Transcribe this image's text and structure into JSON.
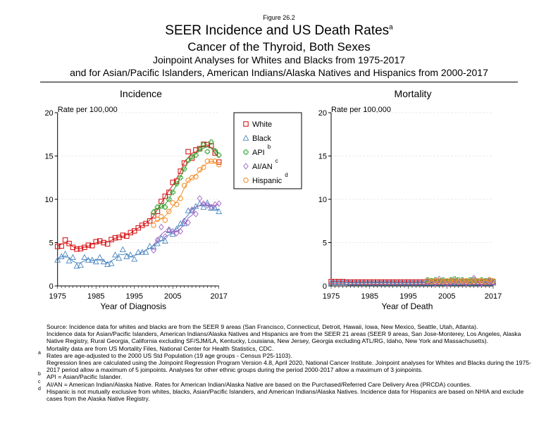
{
  "header": {
    "figure": "Figure 26.2",
    "title": "SEER Incidence and US Death Rates",
    "title_sup": "a",
    "subtitle": "Cancer of the Thyroid, Both Sexes",
    "line1": "Joinpoint Analyses for Whites and Blacks from 1975-2017",
    "line2": "and for Asian/Pacific Islanders, American Indians/Alaska Natives and Hispanics from 2000-2017"
  },
  "colors": {
    "White": "#d7191c",
    "Black": "#4a85c0",
    "API": "#33a02c",
    "AI/AN": "#9e64c4",
    "Hispanic": "#f5922f"
  },
  "legend": [
    {
      "label": "White",
      "sup": "",
      "marker": "square"
    },
    {
      "label": "Black",
      "sup": "",
      "marker": "triangle"
    },
    {
      "label": "API",
      "sup": "b",
      "marker": "plus"
    },
    {
      "label": "AI/AN",
      "sup": "c",
      "marker": "diamond"
    },
    {
      "label": "Hispanic",
      "sup": "d",
      "marker": "circle"
    }
  ],
  "chart_data": [
    {
      "type": "line",
      "title": "Incidence",
      "ylabel": "Rate per 100,000",
      "xlabel": "Year of Diagnosis",
      "xlim": [
        1975,
        2017
      ],
      "ylim": [
        0,
        20
      ],
      "xticks": [
        "1975",
        "1985",
        "1995",
        "2005",
        "2017"
      ],
      "yticks": [
        "0",
        "5",
        "10",
        "15",
        "20"
      ],
      "grid": "horizontal dotted",
      "legend": "top-right",
      "series": [
        {
          "name": "White",
          "x_start": 1975,
          "values": [
            4.55,
            4.6,
            5.3,
            4.9,
            4.45,
            4.25,
            4.3,
            4.45,
            4.7,
            4.65,
            5.1,
            5.2,
            5.0,
            4.85,
            5.35,
            5.55,
            5.6,
            5.85,
            5.75,
            6.15,
            6.35,
            6.7,
            7.0,
            7.2,
            7.5,
            8.1,
            8.6,
            9.75,
            10.35,
            10.8,
            11.95,
            12.1,
            13.25,
            14.2,
            15.5,
            14.75,
            15.7,
            15.85,
            16.35,
            16.3,
            16.2,
            15.35,
            14.3
          ]
        },
        {
          "name": "Black",
          "x_start": 1975,
          "values": [
            3.0,
            3.4,
            3.7,
            2.9,
            3.3,
            2.3,
            2.4,
            3.3,
            3.0,
            3.0,
            2.8,
            3.3,
            2.8,
            2.5,
            2.6,
            3.6,
            3.2,
            4.2,
            3.4,
            3.6,
            3.1,
            3.9,
            3.9,
            3.9,
            4.6,
            4.5,
            4.9,
            5.5,
            5.2,
            6.4,
            6.0,
            6.6,
            7.2,
            7.2,
            8.7,
            8.7,
            9.2,
            9.5,
            9.1,
            9.6,
            9.0,
            9.0,
            8.6
          ]
        },
        {
          "name": "API",
          "x_start": 2000,
          "values": [
            8.5,
            9.1,
            9.2,
            9.1,
            10.0,
            10.8,
            11.8,
            12.5,
            13.5,
            14.5,
            14.9,
            15.1,
            15.8,
            16.3,
            15.5,
            16.6,
            15.6,
            15.1
          ]
        },
        {
          "name": "AI/AN",
          "x_start": 2000,
          "values": [
            4.1,
            5.3,
            6.8,
            5.7,
            6.5,
            6.3,
            6.1,
            6.3,
            7.5,
            7.3,
            8.8,
            8.3,
            10.1,
            9.5,
            9.3,
            9.1,
            9.4,
            9.5
          ]
        },
        {
          "name": "Hispanic",
          "x_start": 2000,
          "values": [
            7.0,
            7.7,
            8.0,
            7.6,
            8.6,
            9.6,
            9.4,
            10.1,
            11.6,
            12.2,
            12.5,
            12.6,
            13.4,
            13.7,
            14.4,
            14.4,
            14.4,
            14.0
          ]
        }
      ]
    },
    {
      "type": "line",
      "title": "Mortality",
      "ylabel": "Rate per 100,000",
      "xlabel": "Year of Death",
      "xlim": [
        1975,
        2017
      ],
      "ylim": [
        0,
        20
      ],
      "xticks": [
        "1975",
        "1985",
        "1995",
        "2005",
        "2017"
      ],
      "yticks": [
        "0",
        "5",
        "10",
        "15",
        "20"
      ],
      "grid": "horizontal dotted",
      "series": [
        {
          "name": "White",
          "x_start": 1975,
          "values": [
            0.5,
            0.5,
            0.5,
            0.5,
            0.45,
            0.45,
            0.45,
            0.45,
            0.45,
            0.45,
            0.45,
            0.45,
            0.45,
            0.45,
            0.45,
            0.45,
            0.45,
            0.45,
            0.45,
            0.45,
            0.45,
            0.45,
            0.45,
            0.45,
            0.45,
            0.45,
            0.45,
            0.45,
            0.45,
            0.45,
            0.45,
            0.45,
            0.45,
            0.45,
            0.45,
            0.45,
            0.45,
            0.45,
            0.45,
            0.45,
            0.45,
            0.45,
            0.45
          ]
        },
        {
          "name": "Black",
          "x_start": 1975,
          "values": [
            0.4,
            0.4,
            0.4,
            0.4,
            0.4,
            0.35,
            0.35,
            0.35,
            0.35,
            0.35,
            0.35,
            0.35,
            0.35,
            0.35,
            0.35,
            0.35,
            0.35,
            0.35,
            0.35,
            0.35,
            0.35,
            0.35,
            0.35,
            0.35,
            0.35,
            0.35,
            0.35,
            0.35,
            0.35,
            0.35,
            0.35,
            0.35,
            0.35,
            0.35,
            0.35,
            0.35,
            0.35,
            0.35,
            0.35,
            0.35,
            0.35,
            0.35,
            0.35
          ]
        },
        {
          "name": "API",
          "x_start": 2000,
          "values": [
            0.7,
            0.6,
            0.7,
            0.6,
            0.7,
            0.6,
            0.7,
            0.8,
            0.7,
            0.7,
            0.6,
            0.7,
            0.7,
            0.6,
            0.7,
            0.6,
            0.7,
            0.6
          ]
        },
        {
          "name": "AI/AN",
          "x_start": 2000,
          "values": [
            0.5,
            0.4,
            0.3,
            0.8,
            0.5,
            0.2,
            0.6,
            0.5,
            0.4,
            0.6,
            0.3,
            0.5,
            0.9,
            0.4,
            0.3,
            0.5,
            0.6,
            0.4
          ]
        },
        {
          "name": "Hispanic",
          "x_start": 2000,
          "values": [
            0.6,
            0.5,
            0.6,
            0.6,
            0.5,
            0.6,
            0.6,
            0.6,
            0.5,
            0.6,
            0.6,
            0.5,
            0.6,
            0.6,
            0.6,
            0.5,
            0.7,
            0.6
          ]
        }
      ]
    }
  ],
  "notes": [
    {
      "sup": "",
      "text": "Source:  Incidence data for whites and blacks are from the SEER 9 areas (San Francisco, Connecticut, Detroit, Hawaii, Iowa, New Mexico, Seattle, Utah, Atlanta)."
    },
    {
      "sup": "",
      "text": "Incidence data for Asian/Pacific Islanders, American Indians/Alaska Natives and Hispanics are from the SEER 21 areas (SEER 9 areas, San Jose-Monterey, Los Angeles, Alaska Native Registry, Rural Georgia, California excluding SF/SJM/LA, Kentucky, Louisiana, New Jersey, Georgia excluding ATL/RG, Idaho, New York and Massachusetts)."
    },
    {
      "sup": "",
      "text": "Mortality data are from US Mortality Files, National Center for Health Statistics, CDC."
    },
    {
      "sup": "a",
      "text": "Rates are age-adjusted to the 2000 US Std Population (19 age groups - Census P25-1103)."
    },
    {
      "sup": "",
      "text": "Regression lines are calculated using the Joinpoint Regression Program Version 4.8, April 2020, National Cancer Institute.  Joinpoint analyses for Whites and Blacks during the 1975-2017 period allow a maximum of 5 joinpoints. Analyses for other ethnic groups during the period 2000-2017 allow a maximum of 3 joinpoints."
    },
    {
      "sup": "b",
      "text": "API = Asian/Pacific Islander."
    },
    {
      "sup": "c",
      "text": "AI/AN = American Indian/Alaska Native.  Rates for American Indian/Alaska Native are based on the Purchased/Referred Care Delivery Area (PRCDA) counties."
    },
    {
      "sup": "d",
      "text": "Hispanic is not mutually exclusive from whites, blacks, Asian/Pacific Islanders, and American Indians/Alaska Natives.  Incidence data for Hispanics are based on NHIA and exclude cases from the Alaska Native Registry."
    }
  ]
}
